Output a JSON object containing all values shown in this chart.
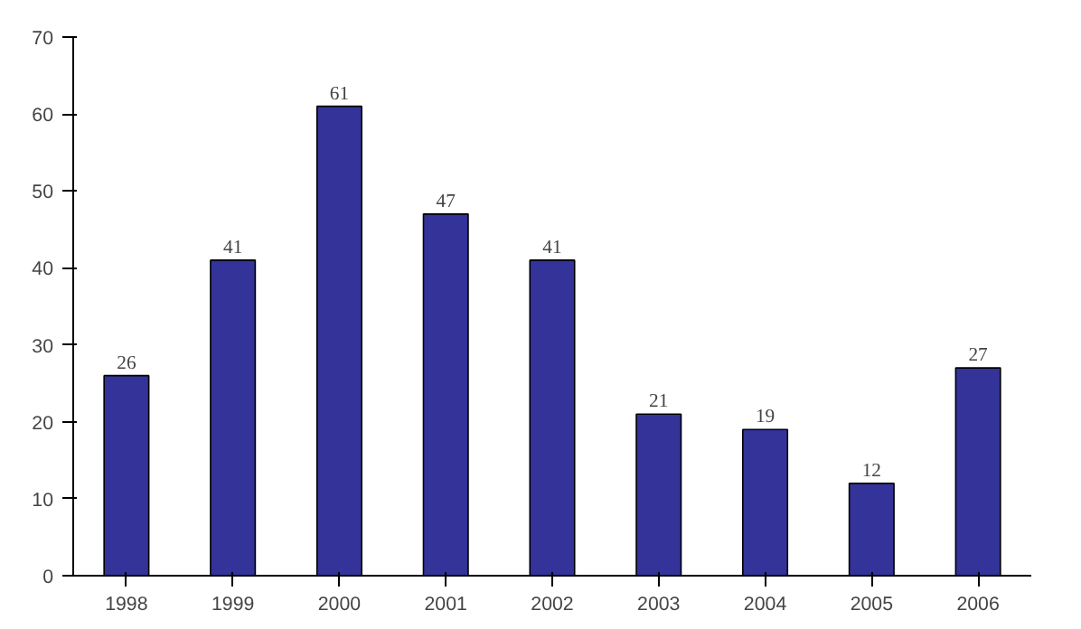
{
  "chart_data": {
    "type": "bar",
    "categories": [
      "1998",
      "1999",
      "2000",
      "2001",
      "2002",
      "2003",
      "2004",
      "2005",
      "2006"
    ],
    "values": [
      26,
      41,
      61,
      47,
      41,
      21,
      19,
      12,
      27
    ],
    "color": "#333399",
    "ylim": [
      0,
      70
    ],
    "yticks": [
      0,
      10,
      20,
      30,
      40,
      50,
      60,
      70
    ],
    "grid": false,
    "data_labels": true
  }
}
